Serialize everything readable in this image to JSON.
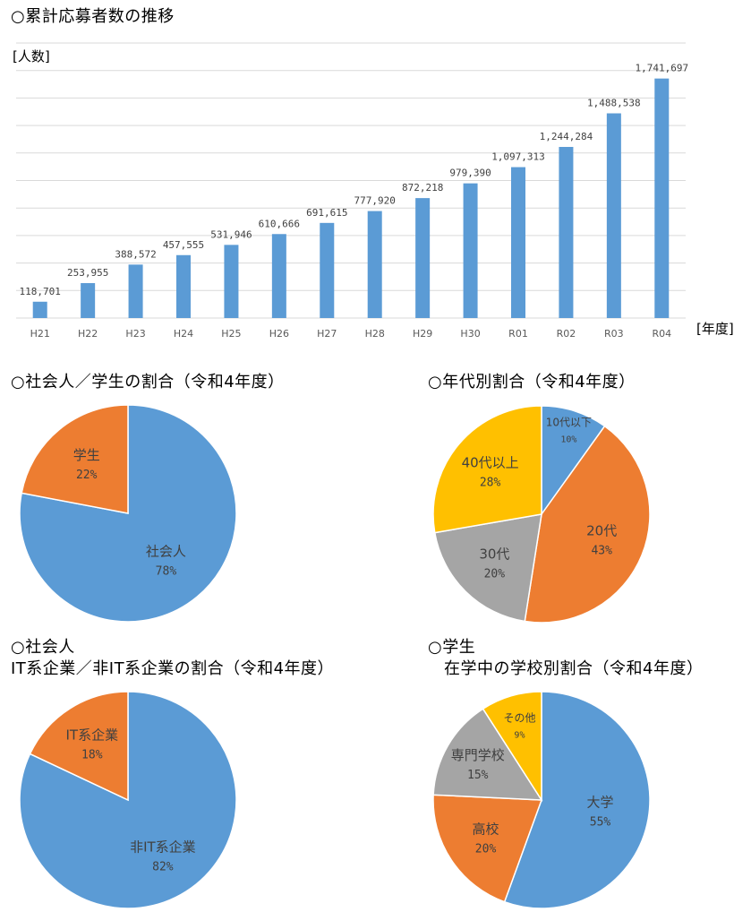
{
  "titles": {
    "bar": "○累計応募者数の推移",
    "pie1": "○社会人／学生の割合（令和4年度）",
    "pie2": "○年代別割合（令和4年度）",
    "pie3_line1": "○社会人",
    "pie3_line2": "IT系企業／非IT系企業の割合（令和4年度）",
    "pie4_line1": "○学生",
    "pie4_line2": "在学中の学校別割合（令和4年度）"
  },
  "colors": {
    "blue": "#5b9bd5",
    "orange": "#ed7d31",
    "gray": "#a5a5a5",
    "gold": "#ffc000",
    "grid": "#d9d9d9"
  },
  "chart_data": [
    {
      "id": "bar",
      "type": "bar",
      "title": "○累計応募者数の推移",
      "ylabel": "[人数]",
      "xlabel": "[年度]",
      "categories": [
        "H21",
        "H22",
        "H23",
        "H24",
        "H25",
        "H26",
        "H27",
        "H28",
        "H29",
        "H30",
        "R01",
        "R02",
        "R03",
        "R04"
      ],
      "values": [
        118701,
        253955,
        388572,
        457555,
        531946,
        610666,
        691615,
        777920,
        872218,
        979390,
        1097313,
        1244284,
        1488538,
        1741697
      ],
      "value_labels": [
        "118,701",
        "253,955",
        "388,572",
        "457,555",
        "531,946",
        "610,666",
        "691,615",
        "777,920",
        "872,218",
        "979,390",
        "1,097,313",
        "1,244,284",
        "1,488,538",
        "1,741,697"
      ],
      "ylim": [
        0,
        2000000
      ],
      "grid": true
    },
    {
      "id": "pie1",
      "type": "pie",
      "title": "○社会人／学生の割合（令和4年度）",
      "slices": [
        {
          "name": "社会人",
          "value": 78,
          "label": "78%",
          "color": "#5b9bd5"
        },
        {
          "name": "学生",
          "value": 22,
          "label": "22%",
          "color": "#ed7d31"
        }
      ]
    },
    {
      "id": "pie2",
      "type": "pie",
      "title": "○年代別割合（令和4年度）",
      "slices": [
        {
          "name": "10代以下",
          "value": 10,
          "label": "10%",
          "color": "#5b9bd5"
        },
        {
          "name": "20代",
          "value": 43,
          "label": "43%",
          "color": "#ed7d31"
        },
        {
          "name": "30代",
          "value": 20,
          "label": "20%",
          "color": "#a5a5a5"
        },
        {
          "name": "40代以上",
          "value": 28,
          "label": "28%",
          "color": "#ffc000"
        }
      ]
    },
    {
      "id": "pie3",
      "type": "pie",
      "title": "○社会人 IT系企業／非IT系企業の割合（令和4年度）",
      "slices": [
        {
          "name": "非IT系企業",
          "value": 82,
          "label": "82%",
          "color": "#5b9bd5"
        },
        {
          "name": "IT系企業",
          "value": 18,
          "label": "18%",
          "color": "#ed7d31"
        }
      ]
    },
    {
      "id": "pie4",
      "type": "pie",
      "title": "○学生 在学中の学校別割合（令和4年度）",
      "slices": [
        {
          "name": "大学",
          "value": 55,
          "label": "55%",
          "color": "#5b9bd5"
        },
        {
          "name": "高校",
          "value": 20,
          "label": "20%",
          "color": "#ed7d31"
        },
        {
          "name": "専門学校",
          "value": 15,
          "label": "15%",
          "color": "#a5a5a5"
        },
        {
          "name": "その他",
          "value": 9,
          "label": "9%",
          "color": "#ffc000"
        }
      ]
    }
  ]
}
